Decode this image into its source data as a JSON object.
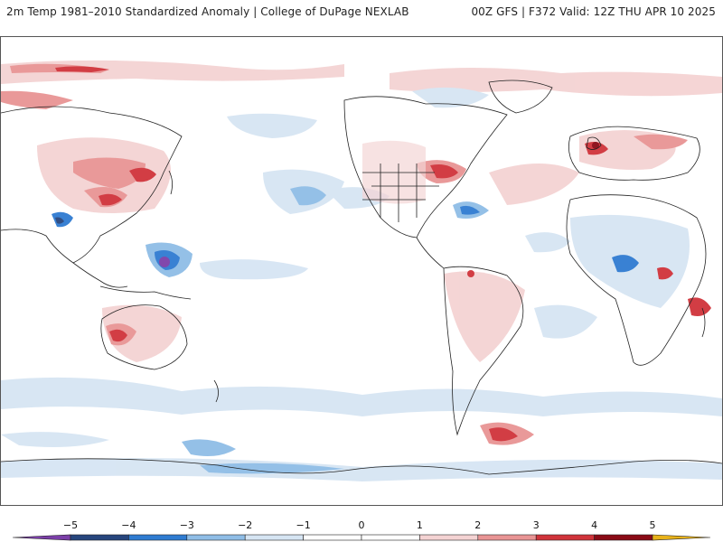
{
  "header": {
    "title_left": "2m Temp 1981–2010 Standardized Anomaly | College of DuPage NEXLAB",
    "title_right": "00Z GFS | F372 Valid: 12Z THU APR 10 2025"
  },
  "map": {
    "projection": "global cylindrical, Pacific-centered",
    "field": "2m temperature standardized anomaly"
  },
  "colorbar": {
    "tick_labels": [
      "−5",
      "−4",
      "−3",
      "−2",
      "−1",
      "0",
      "1",
      "2",
      "3",
      "4",
      "5"
    ],
    "colors": [
      "#7b3fa8",
      "#27457d",
      "#2f7bd1",
      "#8fbde6",
      "#d6e5f3",
      "#ffffff",
      "#ffffff",
      "#f4d3d3",
      "#e89494",
      "#d0333a",
      "#8a0a16",
      "#e8b21a"
    ]
  }
}
